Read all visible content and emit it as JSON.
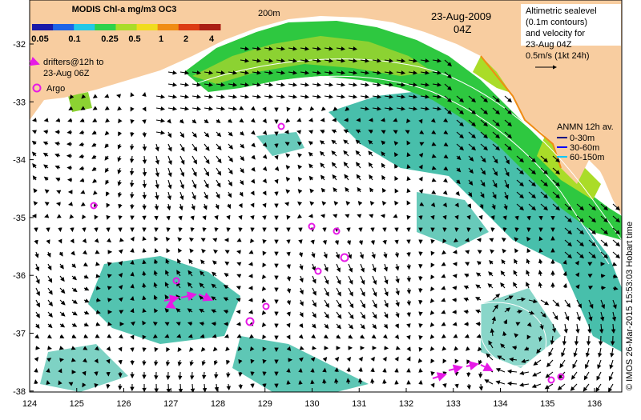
{
  "colorbar": {
    "title": "MODIS Chl-a mg/m3 OC3",
    "ticks": [
      "0.05",
      "0.1",
      "0.25",
      "0.5",
      "1",
      "2",
      "4"
    ],
    "colors": [
      "#1a1aa8",
      "#1e64e6",
      "#23c8e6",
      "#2ed24b",
      "#aadc28",
      "#f0dc1e",
      "#f08c14",
      "#dc3c14",
      "#aa1e14"
    ]
  },
  "contour_label": "200m",
  "date": "23-Aug-2009",
  "time": "04Z",
  "legend_altimetry": {
    "line1": "Altimetric sealevel",
    "line2": "(0.1m contours)",
    "line3": "and velocity for",
    "line4": "23-Aug 04Z",
    "line5": "0.5m/s (1kt 24h)"
  },
  "legend_drifters": {
    "line1": "drifters@12h to",
    "line2": "23-Aug 06Z"
  },
  "legend_argo": {
    "label": "Argo"
  },
  "legend_anmn": {
    "title": "ANMN 12h av.",
    "items": [
      {
        "label": "0-30m",
        "color": "#000080"
      },
      {
        "label": "30-60m",
        "color": "#0000ff"
      },
      {
        "label": "60-150m",
        "color": "#00c8ff"
      }
    ]
  },
  "lat_labels": [
    "-32",
    "-33",
    "-34",
    "-35",
    "-36",
    "-37",
    "-38"
  ],
  "lon_labels": [
    "124",
    "125",
    "126",
    "127",
    "128",
    "129",
    "130",
    "131",
    "132",
    "133",
    "134",
    "135",
    "136"
  ],
  "credit": "© IMOS 26-Mar-2015 15:53:03 Hobart time",
  "colors": {
    "land": "#f8cda0",
    "chl_green": "#2ec840",
    "chl_teal": "#28b49c",
    "chl_lime": "#8cd232",
    "argo": "#e619e6",
    "drifter": "#e619e6"
  }
}
